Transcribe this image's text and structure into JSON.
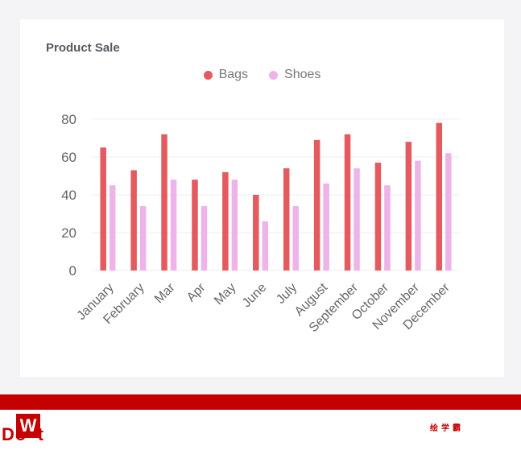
{
  "colors": {
    "bags": "#e55a5f",
    "shoes": "#eeb3e8",
    "grid": "#ececf0",
    "brand": "#c50000"
  },
  "footer": {
    "logo_glyph": "W",
    "brand_text": "Do  't",
    "cn_text": "绘学霸"
  },
  "chart_data": {
    "type": "bar",
    "title": "Product Sale",
    "categories": [
      "January",
      "February",
      "Mar",
      "Apr",
      "May",
      "June",
      "July",
      "August",
      "September",
      "October",
      "November",
      "December"
    ],
    "series": [
      {
        "name": "Bags",
        "values": [
          65,
          53,
          72,
          48,
          52,
          40,
          54,
          69,
          72,
          57,
          68,
          78
        ]
      },
      {
        "name": "Shoes",
        "values": [
          45,
          34,
          48,
          34,
          48,
          26,
          34,
          46,
          54,
          45,
          58,
          62
        ]
      }
    ],
    "ylim": [
      0,
      80
    ],
    "yticks": [
      0,
      20,
      40,
      60,
      80
    ],
    "grid": true,
    "legend_position": "top-center"
  }
}
